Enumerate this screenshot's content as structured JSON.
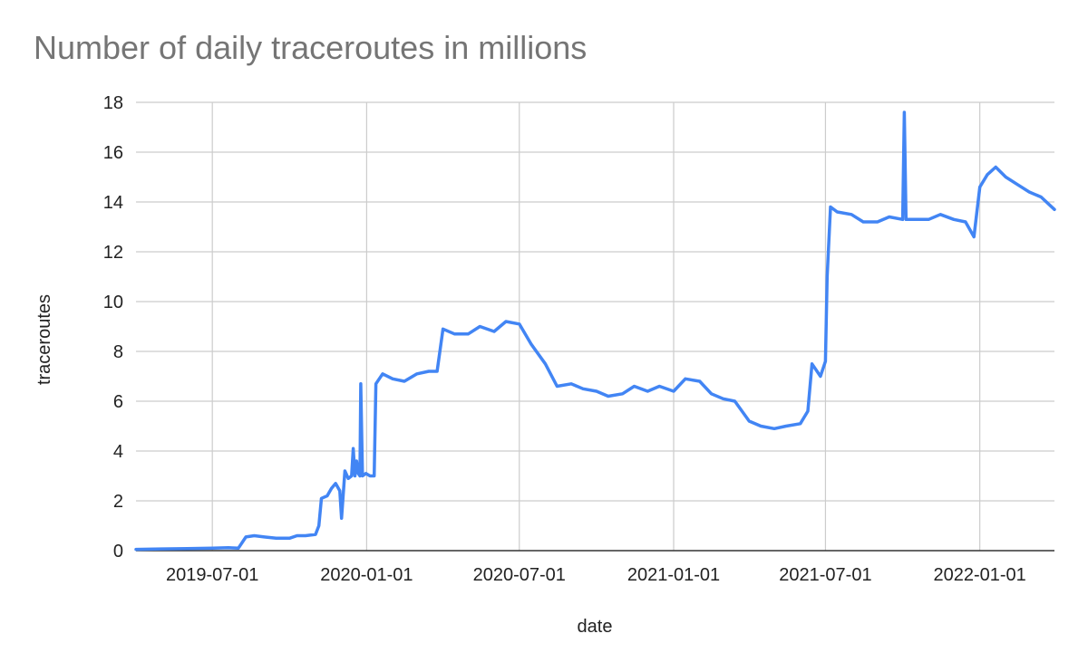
{
  "chart_data": {
    "type": "line",
    "title": "Number of daily traceroutes in millions",
    "xlabel": "date",
    "ylabel": "traceroutes",
    "xlim": [
      "2019-04-01",
      "2022-03-31"
    ],
    "ylim": [
      0,
      18
    ],
    "x_ticks": [
      "2019-07-01",
      "2020-01-01",
      "2020-07-01",
      "2021-01-01",
      "2021-07-01",
      "2022-01-01"
    ],
    "y_ticks": [
      0,
      2,
      4,
      6,
      8,
      10,
      12,
      14,
      16,
      18
    ],
    "grid": true,
    "legend": "none",
    "series": [
      {
        "color": "#4285f4",
        "points": [
          [
            "2019-04-01",
            0.05
          ],
          [
            "2019-05-01",
            0.07
          ],
          [
            "2019-06-01",
            0.08
          ],
          [
            "2019-07-01",
            0.1
          ],
          [
            "2019-07-20",
            0.12
          ],
          [
            "2019-08-01",
            0.1
          ],
          [
            "2019-08-10",
            0.55
          ],
          [
            "2019-08-20",
            0.6
          ],
          [
            "2019-09-01",
            0.55
          ],
          [
            "2019-09-15",
            0.5
          ],
          [
            "2019-10-01",
            0.5
          ],
          [
            "2019-10-10",
            0.6
          ],
          [
            "2019-10-20",
            0.6
          ],
          [
            "2019-11-01",
            0.65
          ],
          [
            "2019-11-05",
            1.0
          ],
          [
            "2019-11-08",
            2.1
          ],
          [
            "2019-11-15",
            2.2
          ],
          [
            "2019-11-20",
            2.5
          ],
          [
            "2019-11-25",
            2.7
          ],
          [
            "2019-11-30",
            2.4
          ],
          [
            "2019-12-02",
            1.3
          ],
          [
            "2019-12-06",
            3.2
          ],
          [
            "2019-12-10",
            2.9
          ],
          [
            "2019-12-14",
            3.0
          ],
          [
            "2019-12-16",
            4.1
          ],
          [
            "2019-12-18",
            3.0
          ],
          [
            "2019-12-20",
            3.6
          ],
          [
            "2019-12-22",
            3.1
          ],
          [
            "2019-12-24",
            3.0
          ],
          [
            "2019-12-25",
            6.7
          ],
          [
            "2019-12-27",
            3.0
          ],
          [
            "2019-12-31",
            3.1
          ],
          [
            "2020-01-05",
            3.0
          ],
          [
            "2020-01-10",
            3.0
          ],
          [
            "2020-01-12",
            6.7
          ],
          [
            "2020-01-20",
            7.1
          ],
          [
            "2020-02-01",
            6.9
          ],
          [
            "2020-02-15",
            6.8
          ],
          [
            "2020-03-01",
            7.1
          ],
          [
            "2020-03-15",
            7.2
          ],
          [
            "2020-03-25",
            7.2
          ],
          [
            "2020-04-01",
            8.9
          ],
          [
            "2020-04-15",
            8.7
          ],
          [
            "2020-05-01",
            8.7
          ],
          [
            "2020-05-15",
            9.0
          ],
          [
            "2020-06-01",
            8.8
          ],
          [
            "2020-06-15",
            9.2
          ],
          [
            "2020-07-01",
            9.1
          ],
          [
            "2020-07-15",
            8.3
          ],
          [
            "2020-08-01",
            7.5
          ],
          [
            "2020-08-15",
            6.6
          ],
          [
            "2020-09-01",
            6.7
          ],
          [
            "2020-09-15",
            6.5
          ],
          [
            "2020-10-01",
            6.4
          ],
          [
            "2020-10-15",
            6.2
          ],
          [
            "2020-11-01",
            6.3
          ],
          [
            "2020-11-15",
            6.6
          ],
          [
            "2020-12-01",
            6.4
          ],
          [
            "2020-12-15",
            6.6
          ],
          [
            "2021-01-01",
            6.4
          ],
          [
            "2021-01-15",
            6.9
          ],
          [
            "2021-02-01",
            6.8
          ],
          [
            "2021-02-15",
            6.3
          ],
          [
            "2021-03-01",
            6.1
          ],
          [
            "2021-03-15",
            6.0
          ],
          [
            "2021-04-01",
            5.2
          ],
          [
            "2021-04-15",
            5.0
          ],
          [
            "2021-05-01",
            4.9
          ],
          [
            "2021-05-15",
            5.0
          ],
          [
            "2021-06-01",
            5.1
          ],
          [
            "2021-06-10",
            5.6
          ],
          [
            "2021-06-15",
            7.5
          ],
          [
            "2021-06-25",
            7.0
          ],
          [
            "2021-07-01",
            7.6
          ],
          [
            "2021-07-03",
            11.0
          ],
          [
            "2021-07-07",
            13.8
          ],
          [
            "2021-07-15",
            13.6
          ],
          [
            "2021-08-01",
            13.5
          ],
          [
            "2021-08-15",
            13.2
          ],
          [
            "2021-09-01",
            13.2
          ],
          [
            "2021-09-15",
            13.4
          ],
          [
            "2021-10-01",
            13.3
          ],
          [
            "2021-10-03",
            17.6
          ],
          [
            "2021-10-05",
            13.3
          ],
          [
            "2021-10-15",
            13.3
          ],
          [
            "2021-11-01",
            13.3
          ],
          [
            "2021-11-15",
            13.5
          ],
          [
            "2021-12-01",
            13.3
          ],
          [
            "2021-12-15",
            13.2
          ],
          [
            "2021-12-25",
            12.6
          ],
          [
            "2022-01-01",
            14.6
          ],
          [
            "2022-01-10",
            15.1
          ],
          [
            "2022-01-20",
            15.4
          ],
          [
            "2022-02-01",
            15.0
          ],
          [
            "2022-02-15",
            14.7
          ],
          [
            "2022-03-01",
            14.4
          ],
          [
            "2022-03-15",
            14.2
          ],
          [
            "2022-03-31",
            13.7
          ]
        ]
      }
    ]
  }
}
